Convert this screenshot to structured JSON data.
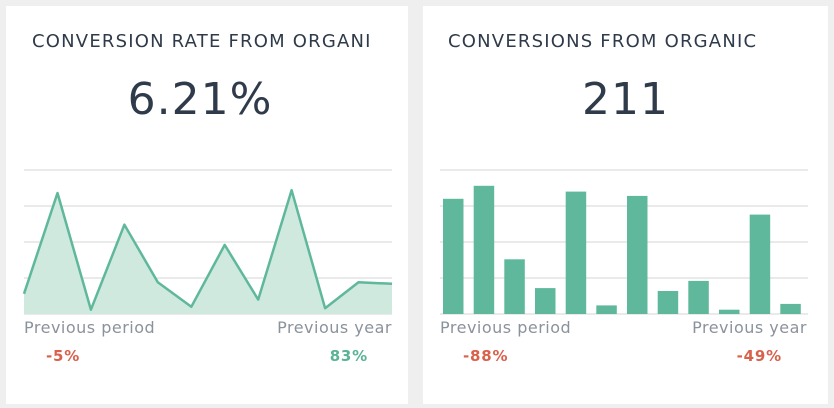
{
  "colors": {
    "accent": "#5fb89b",
    "area_fill": "#cfe9df",
    "negative": "#d9614c",
    "positive": "#5ab395",
    "grid": "#d6d6d6"
  },
  "cards": [
    {
      "title": "CONVERSION RATE FROM ORGANI",
      "value": "6.21%",
      "prev_period_label": "Previous period",
      "prev_period_value": "-5%",
      "prev_year_label": "Previous year",
      "prev_year_value": "83%"
    },
    {
      "title": "CONVERSIONS FROM ORGANIC",
      "value": "211",
      "prev_period_label": "Previous period",
      "prev_period_value": "-88%",
      "prev_year_label": "Previous year",
      "prev_year_value": "-49%"
    }
  ],
  "chart_data": [
    {
      "type": "area",
      "title": "",
      "xlabel": "",
      "ylabel": "",
      "ylim": [
        0,
        100
      ],
      "grid": true,
      "series": [
        {
          "values": [
            14,
            84,
            3,
            62,
            22,
            5,
            48,
            10,
            86,
            4,
            22,
            21
          ]
        }
      ]
    },
    {
      "type": "bar",
      "title": "",
      "xlabel": "",
      "ylabel": "",
      "ylim": [
        0,
        100
      ],
      "grid": true,
      "series": [
        {
          "values": [
            80,
            89,
            38,
            18,
            85,
            6,
            82,
            16,
            23,
            3,
            69,
            7
          ]
        }
      ]
    }
  ]
}
